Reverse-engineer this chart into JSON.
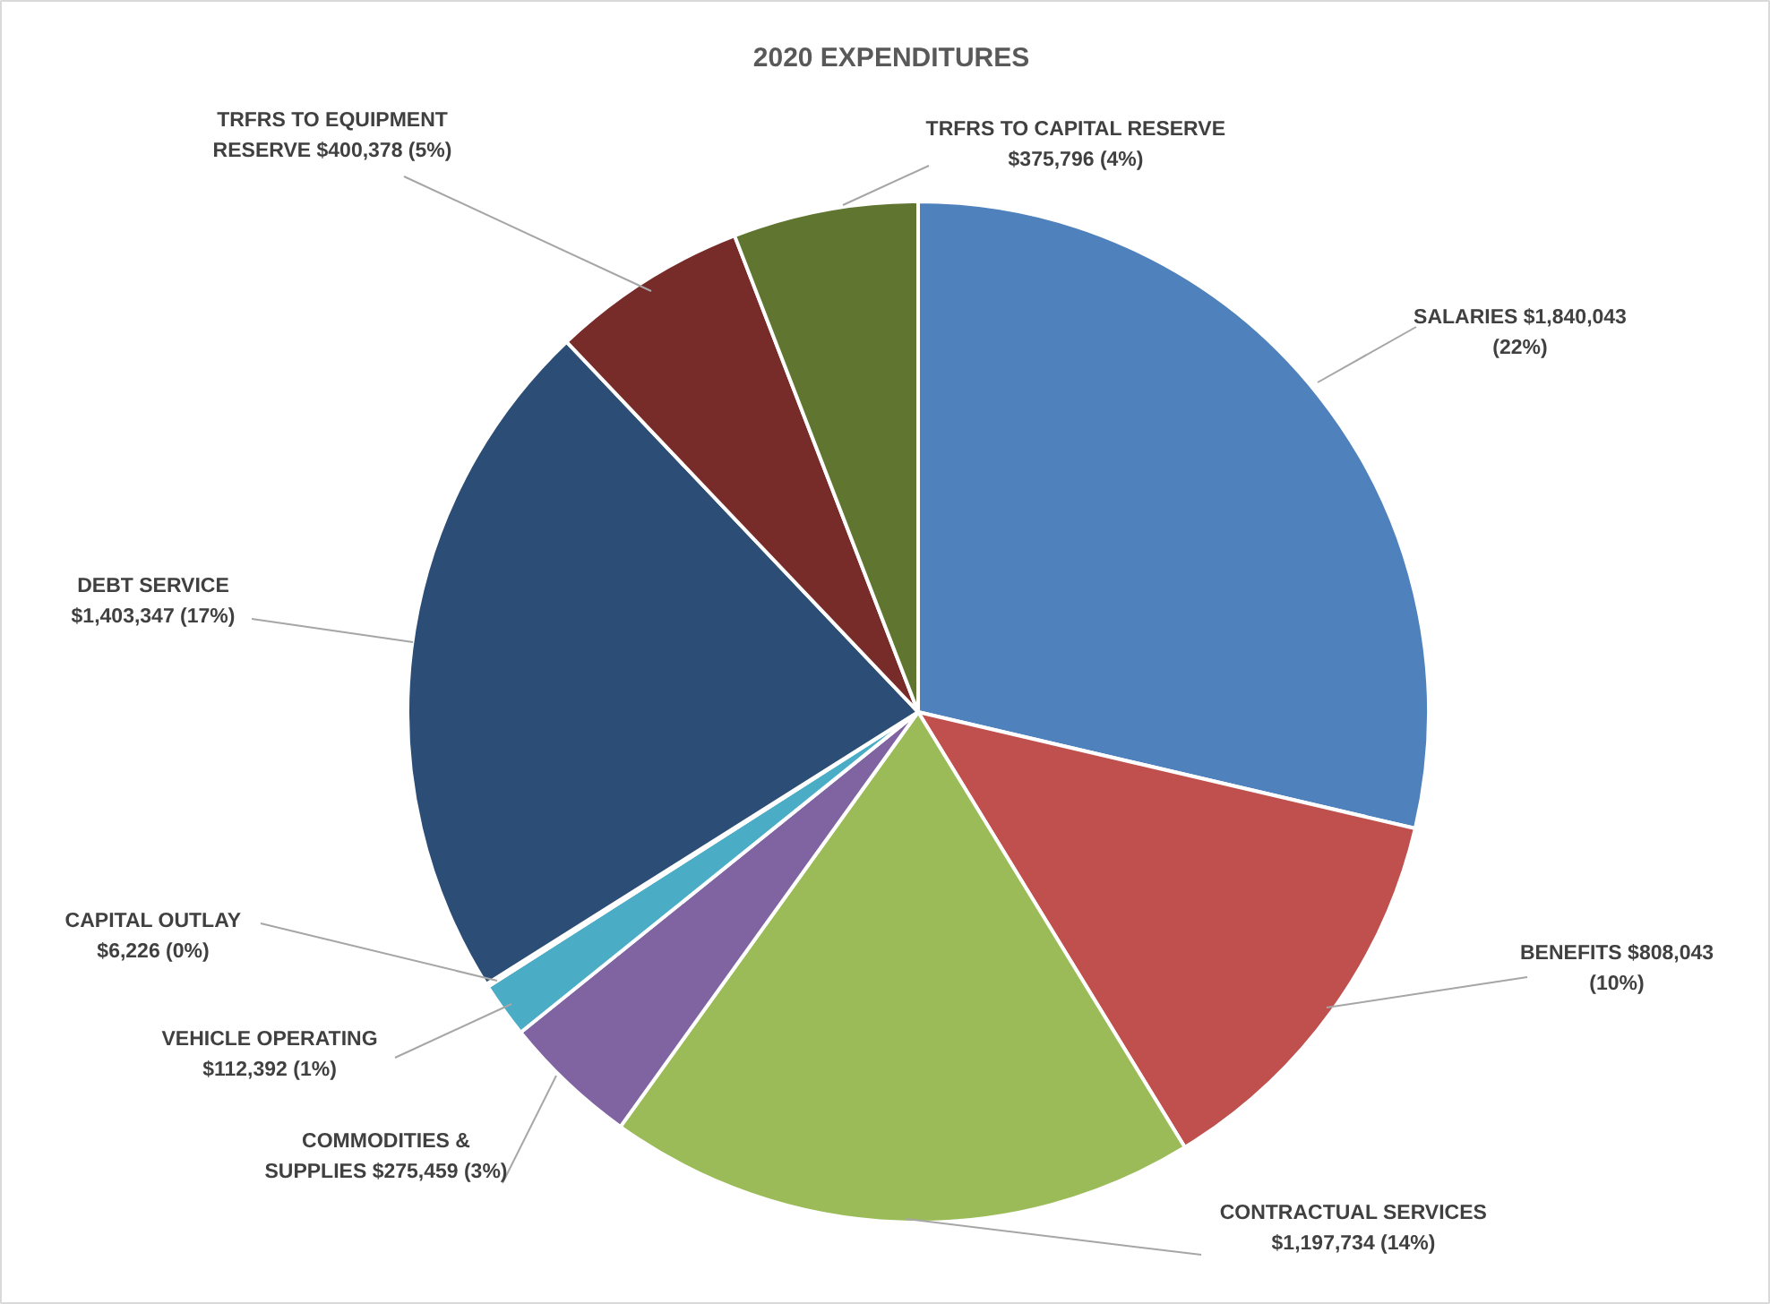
{
  "chart_data": {
    "type": "pie",
    "title": "2020 EXPENDITURES",
    "categories": [
      "SALARIES",
      "BENEFITS",
      "CONTRACTUAL SERVICES",
      "COMMODITIES & SUPPLIES",
      "VEHICLE OPERATING",
      "CAPITAL OUTLAY",
      "DEBT SERVICE",
      "TRFRS TO EQUIPMENT RESERVE",
      "TRFRS TO CAPITAL RESERVE"
    ],
    "values": [
      1840043,
      808043,
      1197734,
      275459,
      112392,
      6226,
      1403347,
      400378,
      375796
    ],
    "colors": [
      "#4f81bd",
      "#c0504d",
      "#9bbb59",
      "#8064a2",
      "#4bacc6",
      "#f79646",
      "#2c4d75",
      "#772c2a",
      "#5f7530"
    ],
    "value_labels": [
      "$1,840,043 (22%)",
      "$808,043 (10%)",
      "$1,197,734 (14%)",
      "$275,459 (3%)",
      "$112,392 (1%)",
      "$6,226 (0%)",
      "$1,403,347 (17%)",
      "$400,378 (5%)",
      "$375,796 (4%)"
    ]
  }
}
